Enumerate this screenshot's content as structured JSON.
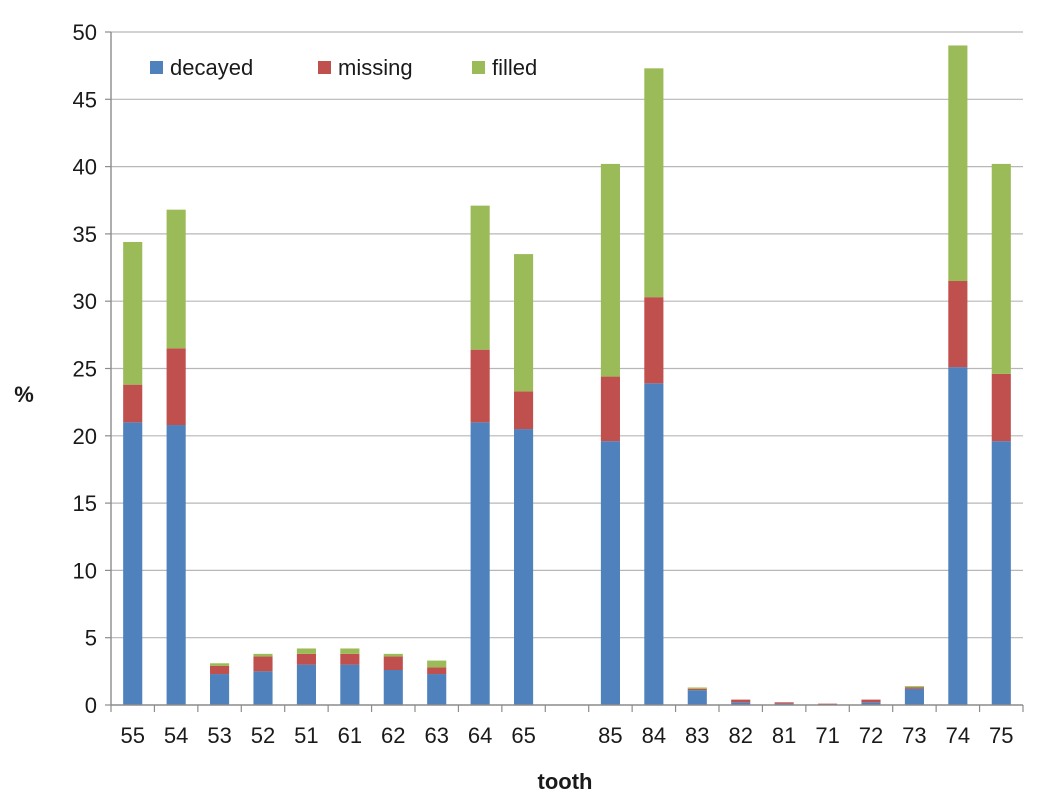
{
  "chart_data": {
    "type": "bar",
    "stacked": true,
    "title": "",
    "xlabel": "tooth",
    "ylabel": "%",
    "ylim": [
      0,
      50
    ],
    "yticks": [
      0,
      5,
      10,
      15,
      20,
      25,
      30,
      35,
      40,
      45,
      50
    ],
    "grid": true,
    "legend_position": "top-left",
    "categories": [
      "55",
      "54",
      "53",
      "52",
      "51",
      "61",
      "62",
      "63",
      "64",
      "65",
      "",
      "85",
      "84",
      "83",
      "82",
      "81",
      "71",
      "72",
      "73",
      "74",
      "75"
    ],
    "series": [
      {
        "name": "decayed",
        "color": "#4f81bd",
        "values": [
          21.0,
          20.8,
          2.3,
          2.5,
          3.0,
          3.0,
          2.6,
          2.3,
          21.0,
          20.5,
          0,
          19.6,
          23.9,
          1.1,
          0.2,
          0.1,
          0.0,
          0.2,
          1.2,
          25.1,
          19.6
        ]
      },
      {
        "name": "missing",
        "color": "#c0504d",
        "values": [
          2.8,
          5.7,
          0.6,
          1.1,
          0.8,
          0.8,
          1.0,
          0.5,
          5.4,
          2.8,
          0,
          4.8,
          6.4,
          0.1,
          0.2,
          0.1,
          0.1,
          0.2,
          0.1,
          6.4,
          5.0
        ]
      },
      {
        "name": "filled",
        "color": "#9bbb59",
        "values": [
          10.6,
          10.3,
          0.2,
          0.2,
          0.4,
          0.4,
          0.2,
          0.5,
          10.7,
          10.2,
          0,
          15.8,
          17.0,
          0.1,
          0.0,
          0.0,
          0.0,
          0.0,
          0.1,
          17.5,
          15.6
        ]
      }
    ]
  }
}
